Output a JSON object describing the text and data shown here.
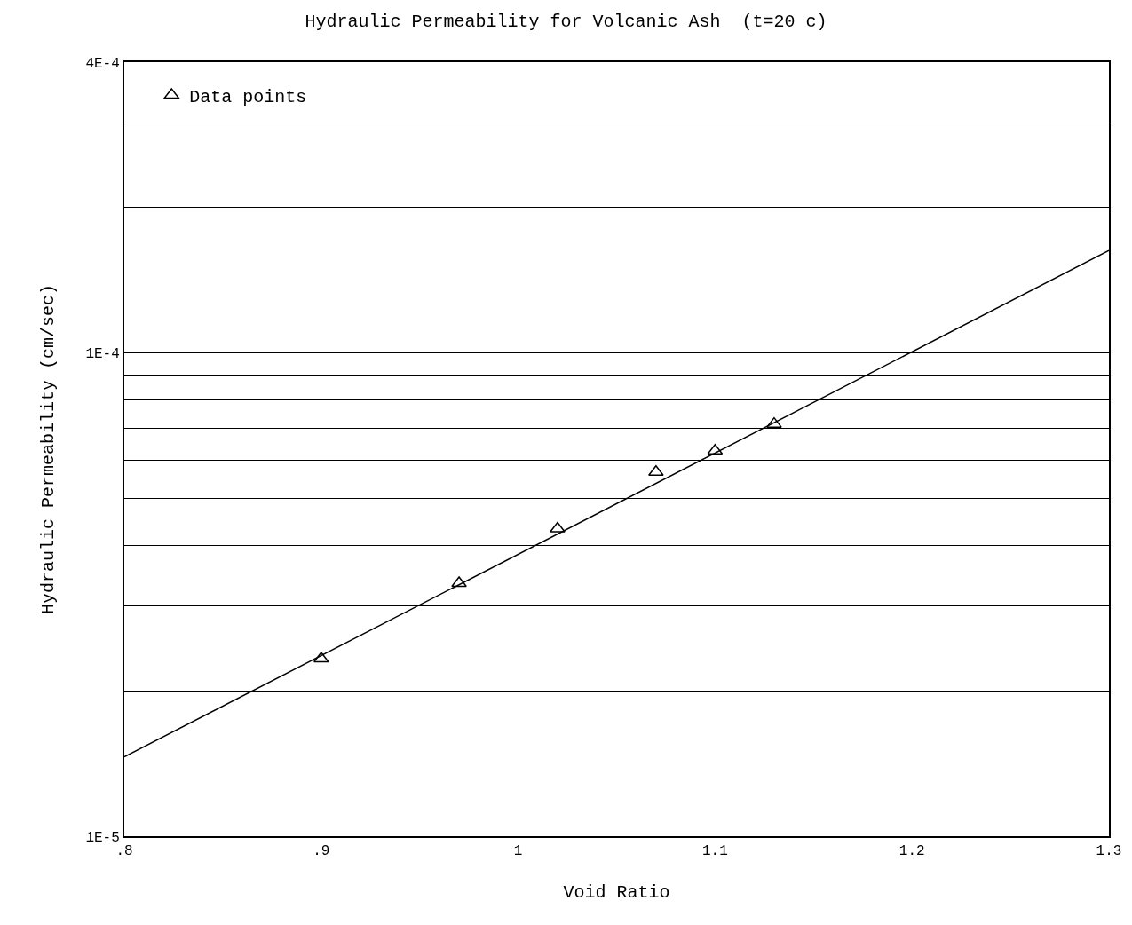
{
  "chart_data": {
    "type": "scatter",
    "title": "Hydraulic Permeability for Volcanic Ash  (t=20 c)",
    "xlabel": "Void Ratio",
    "ylabel": "Hydraulic Permeability (cm/sec)",
    "x": [
      0.9,
      0.97,
      1.02,
      1.07,
      1.1,
      1.13
    ],
    "series": [
      {
        "name": "Data points",
        "color": "#000000",
        "marker": "triangle",
        "values": [
          2.33e-05,
          3.34e-05,
          4.33e-05,
          5.67e-05,
          6.28e-05,
          7.13e-05
        ]
      },
      {
        "type": "line",
        "color": "#000000",
        "marker": "none",
        "line_style": "solid",
        "x": [
          0.8,
          1.3
        ],
        "values": [
          1.46e-05,
          0.000163
        ]
      }
    ],
    "log": "y",
    "grid": "y",
    "legend": "top left",
    "xlim": [
      0.8,
      1.3
    ],
    "xticks": [
      {
        "value": 0.8,
        "label": ".8"
      },
      {
        "value": 0.9,
        "label": ".9"
      },
      1,
      1.1,
      1.2,
      1.3
    ],
    "ylim": [
      1e-05,
      0.0004
    ],
    "yticks": [
      {
        "value": 1e-05,
        "label": "1E-5"
      },
      {
        "value": 2e-05,
        "label": null
      },
      {
        "value": 3e-05,
        "label": null
      },
      {
        "value": 4e-05,
        "label": null
      },
      {
        "value": 5e-05,
        "label": null
      },
      {
        "value": 6e-05,
        "label": null
      },
      {
        "value": 7e-05,
        "label": null
      },
      {
        "value": 8e-05,
        "label": null
      },
      {
        "value": 9e-05,
        "label": null
      },
      {
        "value": 0.0001,
        "label": "1E-4"
      },
      {
        "value": 0.0002,
        "label": null
      },
      {
        "value": 0.0003,
        "label": null
      },
      {
        "value": 0.0004,
        "label": "4E-4"
      }
    ]
  }
}
